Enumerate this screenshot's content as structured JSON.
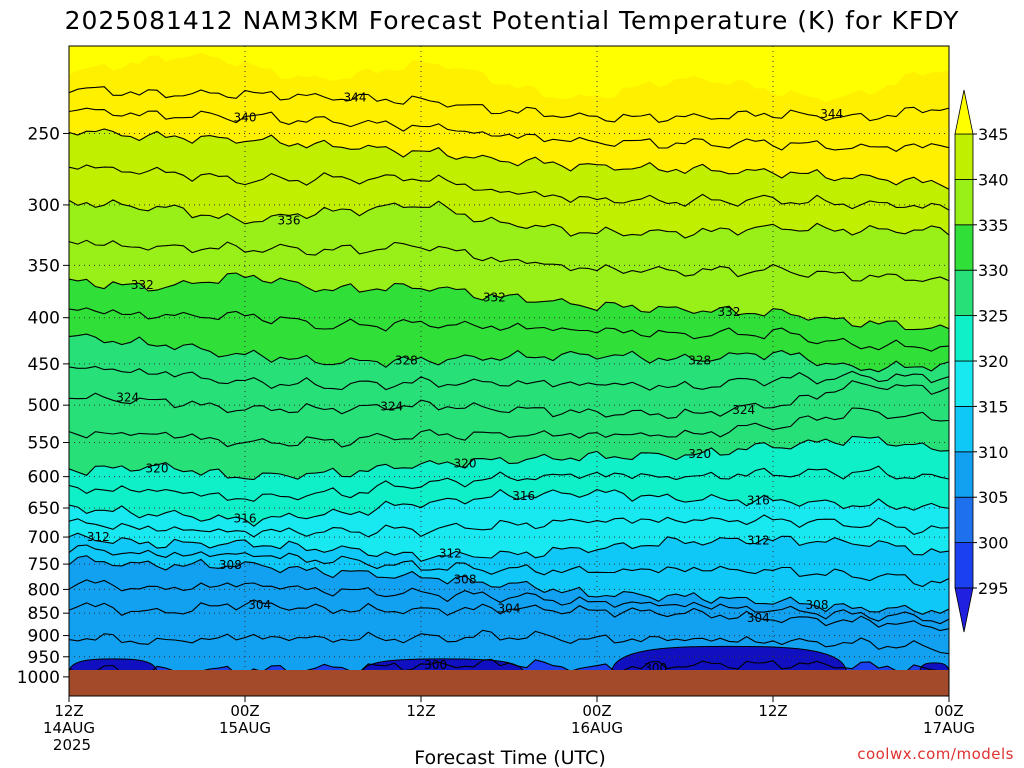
{
  "title": "2025081412 NAM3KM Forecast Potential Temperature (K) for KFDY",
  "credit": "coolwx.com/models",
  "chart_data": {
    "type": "heatmap",
    "title": "2025081412 NAM3KM Forecast Potential Temperature (K) for KFDY",
    "xlabel": "Forecast Time (UTC)",
    "ylabel": "",
    "x_ticks": [
      {
        "hour": 0,
        "lines": [
          "12Z",
          "14AUG",
          "2025"
        ]
      },
      {
        "hour": 12,
        "lines": [
          "00Z",
          "15AUG"
        ]
      },
      {
        "hour": 24,
        "lines": [
          "12Z"
        ]
      },
      {
        "hour": 36,
        "lines": [
          "00Z",
          "16AUG"
        ]
      },
      {
        "hour": 48,
        "lines": [
          "12Z"
        ]
      },
      {
        "hour": 60,
        "lines": [
          "00Z",
          "17AUG"
        ]
      }
    ],
    "xlim_hours": [
      0,
      60
    ],
    "y_scale": "log",
    "ylim_hpa": [
      1050,
      200
    ],
    "y_ticks": [
      "250",
      "300",
      "350",
      "400",
      "450",
      "500",
      "550",
      "600",
      "650",
      "700",
      "750",
      "800",
      "850",
      "900",
      "950",
      "1000"
    ],
    "grid": true,
    "colorbar": {
      "labels": [
        "345",
        "340",
        "335",
        "330",
        "325",
        "320",
        "315",
        "310",
        "305",
        "300",
        "295"
      ],
      "levels": [
        295,
        300,
        305,
        310,
        315,
        320,
        325,
        330,
        335,
        340,
        345
      ],
      "colors": [
        "#2020e0",
        "#1a40f0",
        "#1e70ec",
        "#12a0f0",
        "#10c8f8",
        "#18e8f0",
        "#10f0c8",
        "#28e078",
        "#30e038",
        "#98f018",
        "#c0f000",
        "#fff000"
      ],
      "under_color": "#1010c0",
      "over_color": "#ffff00"
    },
    "ground_color": "#a24a2a",
    "contour_lines": [
      {
        "theta": 300,
        "label": "300",
        "levels_hpa": [
          [
            0,
            980
          ],
          [
            6,
            985
          ],
          [
            12,
            983
          ],
          [
            18,
            978
          ],
          [
            24,
            972
          ],
          [
            30,
            966
          ],
          [
            36,
            978
          ],
          [
            42,
            970
          ],
          [
            48,
            968
          ],
          [
            54,
            972
          ],
          [
            60,
            985
          ]
        ]
      },
      {
        "theta": 304,
        "label": "304",
        "levels_hpa": [
          [
            0,
            832
          ],
          [
            6,
            848
          ],
          [
            12,
            830
          ],
          [
            18,
            842
          ],
          [
            24,
            844
          ],
          [
            30,
            840
          ],
          [
            36,
            845
          ],
          [
            42,
            850
          ],
          [
            48,
            862
          ],
          [
            54,
            868
          ],
          [
            60,
            880
          ]
        ]
      },
      {
        "theta": 308,
        "label": "308",
        "levels_hpa": [
          [
            0,
            742
          ],
          [
            6,
            752
          ],
          [
            12,
            752
          ],
          [
            18,
            765
          ],
          [
            24,
            775
          ],
          [
            30,
            790
          ],
          [
            36,
            810
          ],
          [
            42,
            815
          ],
          [
            48,
            825
          ],
          [
            54,
            840
          ],
          [
            60,
            845
          ]
        ]
      },
      {
        "theta": 312,
        "label": "312",
        "levels_hpa": [
          [
            0,
            700
          ],
          [
            6,
            712
          ],
          [
            12,
            712
          ],
          [
            18,
            722
          ],
          [
            24,
            735
          ],
          [
            30,
            732
          ],
          [
            36,
            720
          ],
          [
            42,
            708
          ],
          [
            48,
            705
          ],
          [
            54,
            710
          ],
          [
            60,
            730
          ]
        ]
      },
      {
        "theta": 316,
        "label": "316",
        "levels_hpa": [
          [
            0,
            650
          ],
          [
            6,
            660
          ],
          [
            12,
            670
          ],
          [
            18,
            660
          ],
          [
            24,
            642
          ],
          [
            30,
            630
          ],
          [
            36,
            625
          ],
          [
            42,
            635
          ],
          [
            48,
            638
          ],
          [
            54,
            645
          ],
          [
            60,
            650
          ]
        ]
      },
      {
        "theta": 320,
        "label": "320",
        "levels_hpa": [
          [
            0,
            590
          ],
          [
            6,
            585
          ],
          [
            12,
            600
          ],
          [
            18,
            595
          ],
          [
            24,
            582
          ],
          [
            30,
            575
          ],
          [
            36,
            570
          ],
          [
            42,
            568
          ],
          [
            48,
            555
          ],
          [
            54,
            545
          ],
          [
            60,
            560
          ]
        ]
      },
      {
        "theta": 324,
        "label": "324",
        "levels_hpa": [
          [
            0,
            490
          ],
          [
            6,
            495
          ],
          [
            12,
            505
          ],
          [
            18,
            505
          ],
          [
            24,
            500
          ],
          [
            30,
            505
          ],
          [
            36,
            510
          ],
          [
            42,
            512
          ],
          [
            48,
            500
          ],
          [
            54,
            475
          ],
          [
            60,
            480
          ]
        ]
      },
      {
        "theta": 328,
        "label": "328",
        "levels_hpa": [
          [
            0,
            420
          ],
          [
            6,
            428
          ],
          [
            12,
            440
          ],
          [
            18,
            448
          ],
          [
            24,
            446
          ],
          [
            30,
            442
          ],
          [
            36,
            440
          ],
          [
            42,
            445
          ],
          [
            48,
            438
          ],
          [
            54,
            455
          ],
          [
            60,
            452
          ]
        ]
      },
      {
        "theta": 332,
        "label": "332",
        "levels_hpa": [
          [
            0,
            365
          ],
          [
            6,
            370
          ],
          [
            12,
            360
          ],
          [
            18,
            372
          ],
          [
            24,
            370
          ],
          [
            30,
            380
          ],
          [
            36,
            388
          ],
          [
            42,
            392
          ],
          [
            48,
            395
          ],
          [
            54,
            405
          ],
          [
            60,
            412
          ]
        ]
      },
      {
        "theta": 336,
        "label": "336",
        "levels_hpa": [
          [
            0,
            298
          ],
          [
            6,
            302
          ],
          [
            12,
            312
          ],
          [
            18,
            305
          ],
          [
            24,
            300
          ],
          [
            30,
            315
          ],
          [
            36,
            322
          ],
          [
            42,
            322
          ],
          [
            48,
            318
          ],
          [
            54,
            320
          ],
          [
            60,
            320
          ]
        ]
      },
      {
        "theta": 340,
        "label": "340",
        "levels_hpa": [
          [
            0,
            248
          ],
          [
            6,
            252
          ],
          [
            12,
            254
          ],
          [
            18,
            258
          ],
          [
            24,
            262
          ],
          [
            30,
            268
          ],
          [
            36,
            272
          ],
          [
            42,
            274
          ],
          [
            48,
            276
          ],
          [
            54,
            280
          ],
          [
            60,
            284
          ]
        ]
      },
      {
        "theta": 344,
        "label": "344",
        "levels_hpa": [
          [
            0,
            223
          ],
          [
            6,
            226
          ],
          [
            12,
            226
          ],
          [
            18,
            228
          ],
          [
            24,
            230
          ],
          [
            30,
            236
          ],
          [
            36,
            240
          ],
          [
            42,
            240
          ],
          [
            48,
            238
          ],
          [
            54,
            240
          ],
          [
            60,
            234
          ]
        ]
      }
    ],
    "contour_label_positions": [
      {
        "label": "344",
        "hour": 19.5,
        "hpa": 228
      },
      {
        "label": "344",
        "hour": 52,
        "hpa": 238
      },
      {
        "label": "340",
        "hour": 12,
        "hpa": 240
      },
      {
        "label": "336",
        "hour": 15,
        "hpa": 312
      },
      {
        "label": "332",
        "hour": 5,
        "hpa": 368
      },
      {
        "label": "332",
        "hour": 29,
        "hpa": 380
      },
      {
        "label": "332",
        "hour": 45,
        "hpa": 394
      },
      {
        "label": "328",
        "hour": 23,
        "hpa": 446
      },
      {
        "label": "328",
        "hour": 43,
        "hpa": 446
      },
      {
        "label": "324",
        "hour": 4,
        "hpa": 490
      },
      {
        "label": "324",
        "hour": 22,
        "hpa": 502
      },
      {
        "label": "324",
        "hour": 46,
        "hpa": 506
      },
      {
        "label": "320",
        "hour": 6,
        "hpa": 588
      },
      {
        "label": "320",
        "hour": 27,
        "hpa": 580
      },
      {
        "label": "320",
        "hour": 43,
        "hpa": 566
      },
      {
        "label": "316",
        "hour": 12,
        "hpa": 668
      },
      {
        "label": "316",
        "hour": 31,
        "hpa": 630
      },
      {
        "label": "316",
        "hour": 47,
        "hpa": 638
      },
      {
        "label": "312",
        "hour": 2,
        "hpa": 700
      },
      {
        "label": "312",
        "hour": 26,
        "hpa": 730
      },
      {
        "label": "312",
        "hour": 47,
        "hpa": 706
      },
      {
        "label": "308",
        "hour": 11,
        "hpa": 752
      },
      {
        "label": "308",
        "hour": 27,
        "hpa": 780
      },
      {
        "label": "308",
        "hour": 51,
        "hpa": 832
      },
      {
        "label": "304",
        "hour": 13,
        "hpa": 832
      },
      {
        "label": "304",
        "hour": 30,
        "hpa": 840
      },
      {
        "label": "304",
        "hour": 47,
        "hpa": 860
      },
      {
        "label": "300",
        "hour": 25,
        "hpa": 970
      },
      {
        "label": "300",
        "hour": 40,
        "hpa": 978
      }
    ]
  }
}
